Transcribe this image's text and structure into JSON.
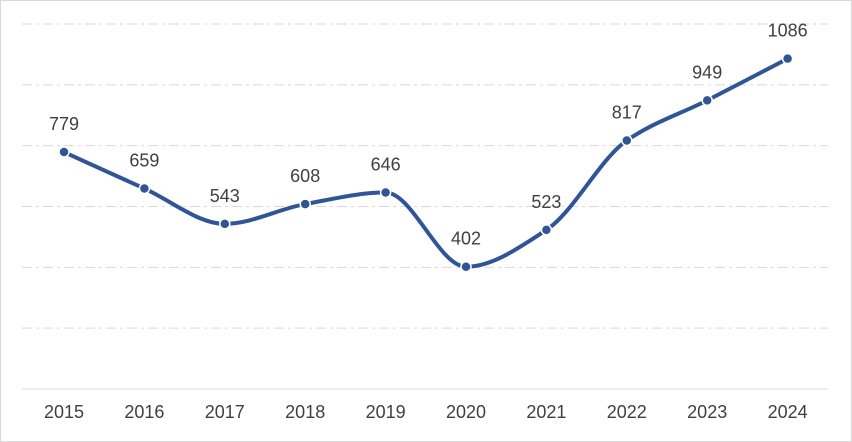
{
  "chart_data": {
    "type": "line",
    "categories": [
      "2015",
      "2016",
      "2017",
      "2018",
      "2019",
      "2020",
      "2021",
      "2022",
      "2023",
      "2024"
    ],
    "series": [
      {
        "values": [
          779,
          659,
          543,
          608,
          646,
          402,
          523,
          817,
          949,
          1086
        ]
      }
    ],
    "data_labels": [
      "779",
      "659",
      "543",
      "608",
      "646",
      "402",
      "523",
      "817",
      "949",
      "1086"
    ],
    "title": "",
    "xlabel": "",
    "ylabel": "",
    "ylim": [
      0,
      1200
    ],
    "grid": true,
    "grid_style": "dash-dot",
    "smooth": true,
    "legend": "none",
    "y_tick_labels_visible": false,
    "colors": {
      "line": "#2f5597",
      "marker": "#2f5597",
      "marker_border": "#ffffff",
      "grid": "#d9d9d9",
      "axis": "#d9d9d9",
      "text": "#404040"
    }
  }
}
